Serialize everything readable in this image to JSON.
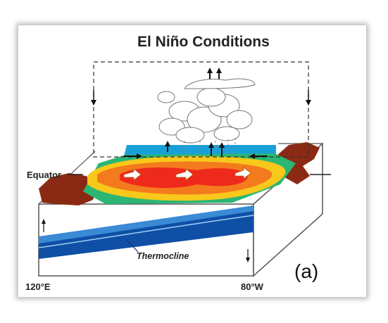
{
  "title": "El Niño Conditions",
  "labels": {
    "equator": "Equator",
    "thermocline": "Thermocline",
    "lon_west": "120°E",
    "lon_east": "80°W",
    "panel": "(a)"
  },
  "colors": {
    "warm_core": "#ee2a1c",
    "warm": "#f47a1e",
    "mid": "#f8c81a",
    "cool": "#2bb673",
    "cold": "#1aa0d8",
    "land": "#8b2a14",
    "ocean_deep": "#0f4fa5",
    "ocean_light": "#3a8ad6"
  },
  "icons": [
    "convection-cloud-icon",
    "wind-arrow-icon",
    "current-arrow-icon"
  ]
}
